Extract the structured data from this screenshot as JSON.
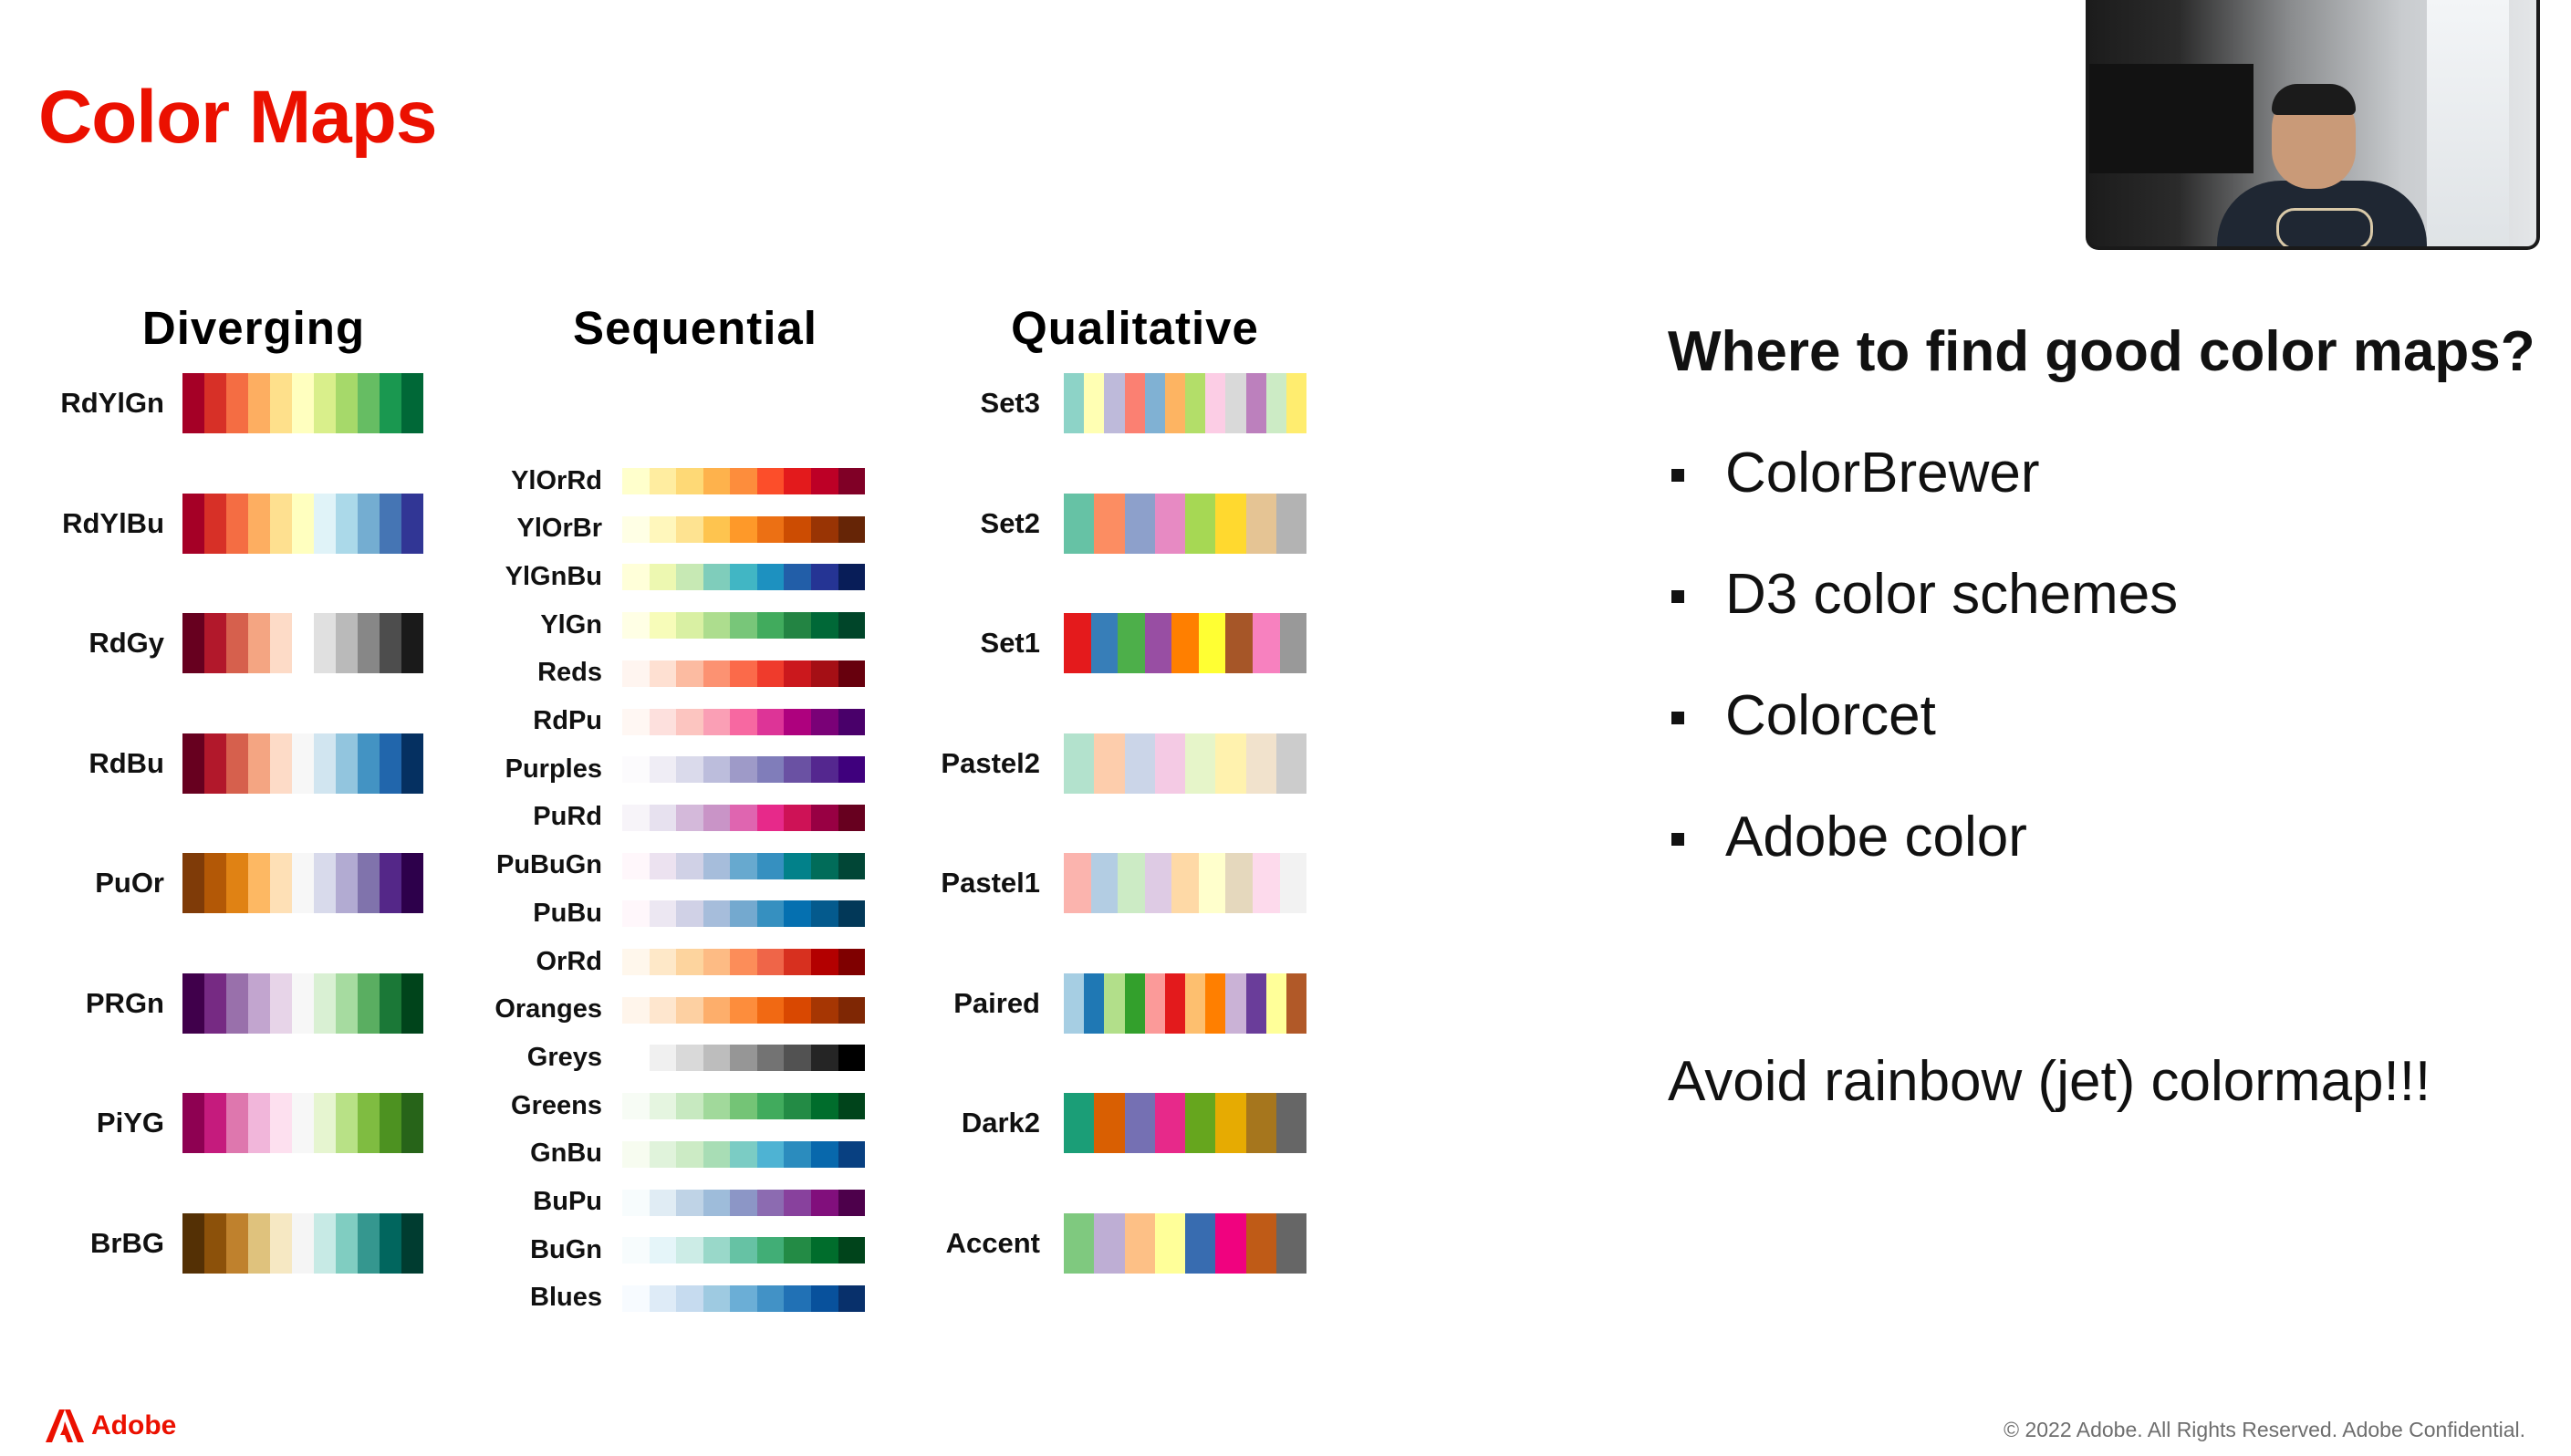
{
  "slide": {
    "title": "Color Maps"
  },
  "categories": {
    "diverging": "Diverging",
    "sequential": "Sequential",
    "qualitative": "Qualitative"
  },
  "diverging": [
    {
      "name": "RdYlGn",
      "colors": [
        "#a50026",
        "#d73027",
        "#f46d43",
        "#fdae61",
        "#fee08b",
        "#ffffbf",
        "#d9ef8b",
        "#a6d96a",
        "#66bd63",
        "#1a9850",
        "#006837"
      ]
    },
    {
      "name": "RdYlBu",
      "colors": [
        "#a50026",
        "#d73027",
        "#f46d43",
        "#fdae61",
        "#fee090",
        "#ffffbf",
        "#e0f3f8",
        "#abd9e9",
        "#74add1",
        "#4575b4",
        "#313695"
      ]
    },
    {
      "name": "RdGy",
      "colors": [
        "#67001f",
        "#b2182b",
        "#d6604d",
        "#f4a582",
        "#fddbc7",
        "#ffffff",
        "#e0e0e0",
        "#bababa",
        "#878787",
        "#4d4d4d",
        "#1a1a1a"
      ]
    },
    {
      "name": "RdBu",
      "colors": [
        "#67001f",
        "#b2182b",
        "#d6604d",
        "#f4a582",
        "#fddbc7",
        "#f7f7f7",
        "#d1e5f0",
        "#92c5de",
        "#4393c3",
        "#2166ac",
        "#053061"
      ]
    },
    {
      "name": "PuOr",
      "colors": [
        "#7f3b08",
        "#b35806",
        "#e08214",
        "#fdb863",
        "#fee0b6",
        "#f7f7f7",
        "#d8daeb",
        "#b2abd2",
        "#8073ac",
        "#542788",
        "#2d004b"
      ]
    },
    {
      "name": "PRGn",
      "colors": [
        "#40004b",
        "#762a83",
        "#9970ab",
        "#c2a5cf",
        "#e7d4e8",
        "#f7f7f7",
        "#d9f0d3",
        "#a6dba0",
        "#5aae61",
        "#1b7837",
        "#00441b"
      ]
    },
    {
      "name": "PiYG",
      "colors": [
        "#8e0152",
        "#c51b7d",
        "#de77ae",
        "#f1b6da",
        "#fde0ef",
        "#f7f7f7",
        "#e6f5d0",
        "#b8e186",
        "#7fbc41",
        "#4d9221",
        "#276419"
      ]
    },
    {
      "name": "BrBG",
      "colors": [
        "#543005",
        "#8c510a",
        "#bf812d",
        "#dfc27d",
        "#f6e8c3",
        "#f5f5f5",
        "#c7eae5",
        "#80cdc1",
        "#35978f",
        "#01665e",
        "#003c30"
      ]
    }
  ],
  "sequential": [
    {
      "name": "YlOrRd",
      "colors": [
        "#ffffcc",
        "#ffeda0",
        "#fed976",
        "#feb24c",
        "#fd8d3c",
        "#fc4e2a",
        "#e31a1c",
        "#bd0026",
        "#800026"
      ]
    },
    {
      "name": "YlOrBr",
      "colors": [
        "#ffffe5",
        "#fff7bc",
        "#fee391",
        "#fec44f",
        "#fe9929",
        "#ec7014",
        "#cc4c02",
        "#993404",
        "#662506"
      ]
    },
    {
      "name": "YlGnBu",
      "colors": [
        "#ffffd9",
        "#edf8b1",
        "#c7e9b4",
        "#7fcdbb",
        "#41b6c4",
        "#1d91c0",
        "#225ea8",
        "#253494",
        "#081d58"
      ]
    },
    {
      "name": "YlGn",
      "colors": [
        "#ffffe5",
        "#f7fcb9",
        "#d9f0a3",
        "#addd8e",
        "#78c679",
        "#41ab5d",
        "#238443",
        "#006837",
        "#004529"
      ]
    },
    {
      "name": "Reds",
      "colors": [
        "#fff5f0",
        "#fee0d2",
        "#fcbba1",
        "#fc9272",
        "#fb6a4a",
        "#ef3b2c",
        "#cb181d",
        "#a50f15",
        "#67000d"
      ]
    },
    {
      "name": "RdPu",
      "colors": [
        "#fff7f3",
        "#fde0dd",
        "#fcc5c0",
        "#fa9fb5",
        "#f768a1",
        "#dd3497",
        "#ae017e",
        "#7a0177",
        "#49006a"
      ]
    },
    {
      "name": "Purples",
      "colors": [
        "#fcfbfd",
        "#efedf5",
        "#dadaeb",
        "#bcbddc",
        "#9e9ac8",
        "#807dba",
        "#6a51a3",
        "#54278f",
        "#3f007d"
      ]
    },
    {
      "name": "PuRd",
      "colors": [
        "#f7f4f9",
        "#e7e1ef",
        "#d4b9da",
        "#c994c7",
        "#df65b0",
        "#e7298a",
        "#ce1256",
        "#980043",
        "#67001f"
      ]
    },
    {
      "name": "PuBuGn",
      "colors": [
        "#fff7fb",
        "#ece2f0",
        "#d0d1e6",
        "#a6bddb",
        "#67a9cf",
        "#3690c0",
        "#02818a",
        "#016c59",
        "#014636"
      ]
    },
    {
      "name": "PuBu",
      "colors": [
        "#fff7fb",
        "#ece7f2",
        "#d0d1e6",
        "#a6bddb",
        "#74a9cf",
        "#3690c0",
        "#0570b0",
        "#045a8d",
        "#023858"
      ]
    },
    {
      "name": "OrRd",
      "colors": [
        "#fff7ec",
        "#fee8c8",
        "#fdd49e",
        "#fdbb84",
        "#fc8d59",
        "#ef6548",
        "#d7301f",
        "#b30000",
        "#7f0000"
      ]
    },
    {
      "name": "Oranges",
      "colors": [
        "#fff5eb",
        "#fee6ce",
        "#fdd0a2",
        "#fdae6b",
        "#fd8d3c",
        "#f16913",
        "#d94801",
        "#a63603",
        "#7f2704"
      ]
    },
    {
      "name": "Greys",
      "colors": [
        "#ffffff",
        "#f0f0f0",
        "#d9d9d9",
        "#bdbdbd",
        "#969696",
        "#737373",
        "#525252",
        "#252525",
        "#000000"
      ]
    },
    {
      "name": "Greens",
      "colors": [
        "#f7fcf5",
        "#e5f5e0",
        "#c7e9c0",
        "#a1d99b",
        "#74c476",
        "#41ab5d",
        "#238b45",
        "#006d2c",
        "#00441b"
      ]
    },
    {
      "name": "GnBu",
      "colors": [
        "#f7fcf0",
        "#e0f3db",
        "#ccebc5",
        "#a8ddb5",
        "#7bccc4",
        "#4eb3d3",
        "#2b8cbe",
        "#0868ac",
        "#084081"
      ]
    },
    {
      "name": "BuPu",
      "colors": [
        "#f7fcfd",
        "#e0ecf4",
        "#bfd3e6",
        "#9ebcda",
        "#8c96c6",
        "#8c6bb1",
        "#88419d",
        "#810f7c",
        "#4d004b"
      ]
    },
    {
      "name": "BuGn",
      "colors": [
        "#f7fcfd",
        "#e5f5f9",
        "#ccece6",
        "#99d8c9",
        "#66c2a4",
        "#41ae76",
        "#238b45",
        "#006d2c",
        "#00441b"
      ]
    },
    {
      "name": "Blues",
      "colors": [
        "#f7fbff",
        "#deebf7",
        "#c6dbef",
        "#9ecae1",
        "#6baed6",
        "#4292c6",
        "#2171b5",
        "#08519c",
        "#08306b"
      ]
    }
  ],
  "qualitative": [
    {
      "name": "Set3",
      "colors": [
        "#8dd3c7",
        "#ffffb3",
        "#bebada",
        "#fb8072",
        "#80b1d3",
        "#fdb462",
        "#b3de69",
        "#fccde5",
        "#d9d9d9",
        "#bc80bd",
        "#ccebc5",
        "#ffed6f"
      ]
    },
    {
      "name": "Set2",
      "colors": [
        "#66c2a5",
        "#fc8d62",
        "#8da0cb",
        "#e78ac3",
        "#a6d854",
        "#ffd92f",
        "#e5c494",
        "#b3b3b3"
      ]
    },
    {
      "name": "Set1",
      "colors": [
        "#e41a1c",
        "#377eb8",
        "#4daf4a",
        "#984ea3",
        "#ff7f00",
        "#ffff33",
        "#a65628",
        "#f781bf",
        "#999999"
      ]
    },
    {
      "name": "Pastel2",
      "colors": [
        "#b3e2cd",
        "#fdcdac",
        "#cbd5e8",
        "#f4cae4",
        "#e6f5c9",
        "#fff2ae",
        "#f1e2cc",
        "#cccccc"
      ]
    },
    {
      "name": "Pastel1",
      "colors": [
        "#fbb4ae",
        "#b3cde3",
        "#ccebc5",
        "#decbe4",
        "#fed9a6",
        "#ffffcc",
        "#e5d8bd",
        "#fddaec",
        "#f2f2f2"
      ]
    },
    {
      "name": "Paired",
      "colors": [
        "#a6cee3",
        "#1f78b4",
        "#b2df8a",
        "#33a02c",
        "#fb9a99",
        "#e31a1c",
        "#fdbf6f",
        "#ff7f00",
        "#cab2d6",
        "#6a3d9a",
        "#ffff99",
        "#b15928"
      ]
    },
    {
      "name": "Dark2",
      "colors": [
        "#1b9e77",
        "#d95f02",
        "#7570b3",
        "#e7298a",
        "#66a61e",
        "#e6ab02",
        "#a6761d",
        "#666666"
      ]
    },
    {
      "name": "Accent",
      "colors": [
        "#7fc97f",
        "#beaed4",
        "#fdc086",
        "#ffff99",
        "#386cb0",
        "#f0027f",
        "#bf5b17",
        "#666666"
      ]
    }
  ],
  "panel": {
    "question": "Where to find good color maps?",
    "bullets": [
      "ColorBrewer",
      "D3 color schemes",
      "Colorcet",
      "Adobe color"
    ],
    "warning": "Avoid rainbow (jet) colormap!!!"
  },
  "footer": {
    "logo_text": "Adobe",
    "copyright": "© 2022 Adobe. All Rights Reserved. Adobe Confidential."
  },
  "colors": {
    "accent": "#eb1000"
  }
}
